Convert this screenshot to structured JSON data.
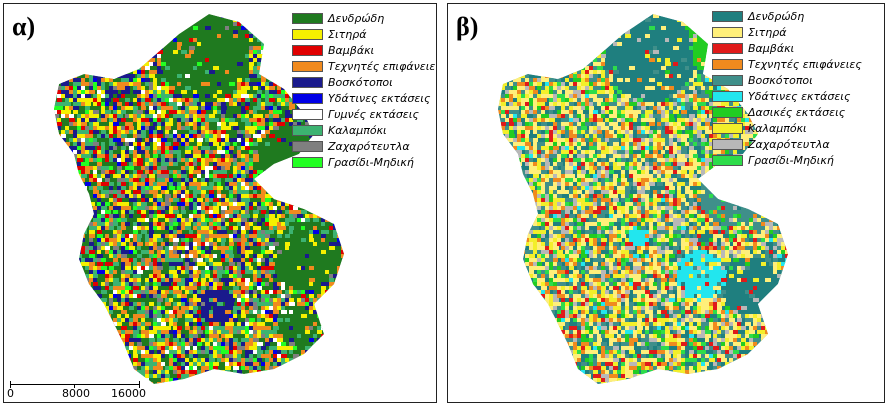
{
  "panels": [
    {
      "label": "α)",
      "legend": [
        {
          "label": "Δενδρώδη",
          "color": "#1f7a1f"
        },
        {
          "label": "Σιτηρά",
          "color": "#f5f000"
        },
        {
          "label": "Βαμβάκι",
          "color": "#e00000"
        },
        {
          "label": "Τεχνητές επιφάνειες",
          "color": "#f08a1e"
        },
        {
          "label": "Βοσκότοποι",
          "color": "#1a1a8c"
        },
        {
          "label": "Υδάτινες εκτάσεις",
          "color": "#0000e6"
        },
        {
          "label": "Γυμνές εκτάσεις",
          "color": "#ffffff"
        },
        {
          "label": "Καλαμπόκι",
          "color": "#3cb371"
        },
        {
          "label": "Ζαχαρότευτλα",
          "color": "#7f7f7f"
        },
        {
          "label": "Γρασίδι-Μηδική",
          "color": "#22ff22"
        }
      ],
      "scale": {
        "ticks": [
          "0",
          "8000",
          "16000"
        ]
      }
    },
    {
      "label": "β)",
      "legend": [
        {
          "label": "Δενδρώδη",
          "color": "#1f7f7f"
        },
        {
          "label": "Σιτηρά",
          "color": "#ffef7a"
        },
        {
          "label": "Βαμβάκι",
          "color": "#e01a1a"
        },
        {
          "label": "Τεχνητές επιφάνειες",
          "color": "#f08a1e"
        },
        {
          "label": "Βοσκότοποι",
          "color": "#3f8f8a"
        },
        {
          "label": "Υδάτινες εκτάσεις",
          "color": "#22e6ee"
        },
        {
          "label": "Δασικές εκτάσεις",
          "color": "#22cc22"
        },
        {
          "label": "Καλαμπόκι",
          "color": "#f3ef2a"
        },
        {
          "label": "Ζαχαρότευτλα",
          "color": "#b8b8b8"
        },
        {
          "label": "Γρασίδι-Μηδική",
          "color": "#2ddc4a"
        }
      ]
    }
  ]
}
